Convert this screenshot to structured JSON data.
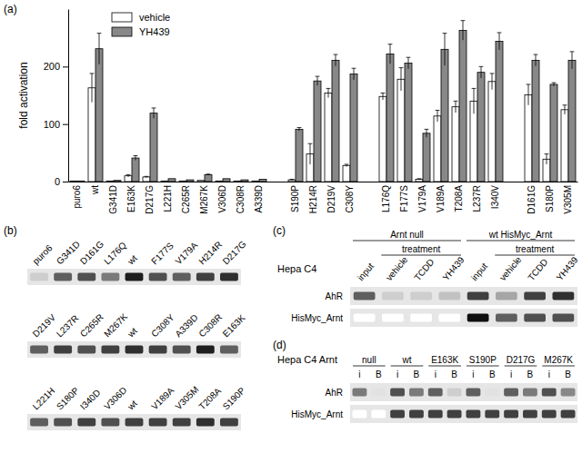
{
  "chart_data": {
    "type": "bar",
    "annotations": [
      "(a)"
    ],
    "y_label": "fold activation",
    "categories": [
      "puro6",
      "wt",
      "G341D",
      "E163K",
      "D217G",
      "L221H",
      "C265R",
      "M267K",
      "V306D",
      "C308R",
      "A339D",
      null,
      "S190P",
      "H214R",
      "D219V",
      "C308Y",
      null,
      "L176Q",
      "F177S",
      "V179A",
      "V189A",
      "T208A",
      "L237R",
      "I340V",
      null,
      "D161G",
      "S180P",
      "V305M"
    ],
    "series": [
      {
        "name": "vehicle",
        "color": "#ffffff",
        "values": [
          1,
          163,
          1,
          10,
          8,
          1,
          1,
          2,
          1,
          1,
          1,
          null,
          3,
          48,
          154,
          28,
          null,
          148,
          178,
          4,
          114,
          130,
          140,
          174,
          null,
          151,
          39,
          125
        ],
        "errors": [
          0,
          25,
          0,
          2,
          1,
          0,
          0,
          0,
          0,
          0,
          0,
          null,
          1,
          18,
          8,
          2,
          null,
          6,
          20,
          1,
          10,
          10,
          22,
          14,
          null,
          18,
          9,
          8
        ]
      },
      {
        "name": "YH439",
        "color": "#888888",
        "values": [
          1,
          231,
          2,
          41,
          119,
          5,
          3,
          12,
          5,
          3,
          4,
          null,
          91,
          175,
          211,
          187,
          null,
          222,
          206,
          84,
          230,
          263,
          190,
          244,
          null,
          211,
          169,
          211
        ],
        "errors": [
          0,
          27,
          0,
          4,
          9,
          0,
          0,
          1,
          0,
          0,
          0,
          null,
          3,
          8,
          10,
          10,
          null,
          17,
          10,
          7,
          28,
          17,
          10,
          15,
          null,
          10,
          3,
          15
        ]
      }
    ],
    "ylim": [
      0,
      300
    ],
    "yticks": [
      0,
      100,
      200
    ],
    "legend": "top-left"
  },
  "gels": [
    {
      "label": "(b)",
      "rows": [
        {
          "lanes": [
            "puro6",
            "G341D",
            "D161G",
            "L176Q",
            "wt",
            "F177S",
            "V179A",
            "H214R",
            "D217G"
          ],
          "bands": [
            0.3,
            0.7,
            0.75,
            0.6,
            0.9,
            0.75,
            0.7,
            0.8,
            0.85
          ]
        },
        {
          "lanes": [
            "D219V",
            "L237R",
            "C265R",
            "M267K",
            "wt",
            "C308Y",
            "A339D",
            "C308R",
            "E163K"
          ],
          "bands": [
            0.7,
            0.8,
            0.75,
            0.8,
            0.85,
            0.8,
            0.75,
            0.9,
            0.7
          ]
        },
        {
          "lanes": [
            "L221H",
            "S180P",
            "I340D",
            "V306D",
            "wt",
            "V189A",
            "V305M",
            "T208A",
            "S190P"
          ],
          "bands": [
            0.7,
            0.75,
            0.8,
            0.75,
            0.8,
            0.8,
            0.8,
            0.85,
            0.8
          ]
        }
      ]
    },
    {
      "label": "(c)",
      "title": "Hepa C4",
      "groups": [
        {
          "name": "Arnt null",
          "sub": "treatment",
          "lanes": [
            "input",
            "vehicle",
            "TCDD",
            "YH439"
          ]
        },
        {
          "name": "wt HisMyc_Arnt",
          "sub": "treatment",
          "lanes": [
            "input",
            "vehicle",
            "TCDD",
            "YH439"
          ]
        }
      ],
      "rows": [
        {
          "label": "AhR",
          "bands": [
            0.7,
            0.3,
            0.3,
            0.35,
            0.8,
            0.45,
            0.8,
            0.85
          ]
        },
        {
          "label": "HisMyc_Arnt",
          "bands": [
            0,
            0,
            0,
            0,
            0.95,
            0.7,
            0.75,
            0.75
          ]
        }
      ]
    },
    {
      "label": "(d)",
      "title": "Hepa C4 Arnt",
      "groups": [
        {
          "name": "null",
          "lanes": [
            "i",
            "B"
          ]
        },
        {
          "name": "wt",
          "lanes": [
            "i",
            "B"
          ]
        },
        {
          "name": "E163K",
          "lanes": [
            "i",
            "B"
          ]
        },
        {
          "name": "S190P",
          "lanes": [
            "i",
            "B"
          ]
        },
        {
          "name": "D217G",
          "lanes": [
            "i",
            "B"
          ]
        },
        {
          "name": "M267K",
          "lanes": [
            "i",
            "B"
          ]
        }
      ],
      "rows": [
        {
          "label": "AhR",
          "bands": [
            0.6,
            0.2,
            0.75,
            0.6,
            0.7,
            0.3,
            0.7,
            0.2,
            0.7,
            0.6,
            0.75,
            0.55
          ]
        },
        {
          "label": "HisMyc_Arnt",
          "bands": [
            0,
            0,
            0.8,
            0.8,
            0.8,
            0.8,
            0.8,
            0.8,
            0.8,
            0.8,
            0.8,
            0.8
          ]
        }
      ]
    }
  ]
}
